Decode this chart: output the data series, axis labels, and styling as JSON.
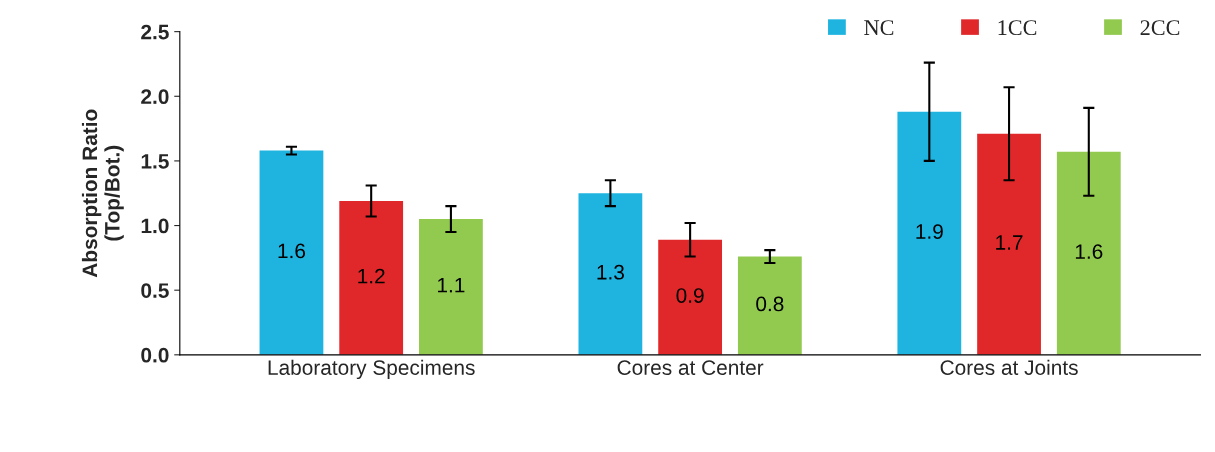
{
  "chart_data": {
    "type": "bar",
    "ylabel": "Absorption Ratio\n(Top/Bot.)",
    "categories": [
      "Laboratory Specimens",
      "Cores at Center",
      "Cores at Joints"
    ],
    "series": [
      {
        "name": "NC",
        "color": "#1fb4e0",
        "values": [
          1.58,
          1.25,
          1.88
        ],
        "errors": [
          0.03,
          0.1,
          0.38
        ],
        "value_labels": [
          "1.6",
          "1.3",
          "1.9"
        ]
      },
      {
        "name": "1CC",
        "color": "#e0282a",
        "values": [
          1.19,
          0.89,
          1.71
        ],
        "errors": [
          0.12,
          0.13,
          0.36
        ],
        "value_labels": [
          "1.2",
          "0.9",
          "1.7"
        ]
      },
      {
        "name": "2CC",
        "color": "#92c94f",
        "values": [
          1.05,
          0.76,
          1.57
        ],
        "errors": [
          0.1,
          0.05,
          0.34
        ],
        "value_labels": [
          "1.1",
          "0.8",
          "1.6"
        ]
      }
    ],
    "ylim": [
      0,
      2.5
    ],
    "yticks": [
      {
        "value": 0,
        "label": "0.0"
      },
      {
        "value": 0.5,
        "label": "0.5"
      },
      {
        "value": 1,
        "label": "1.0"
      },
      {
        "value": 1.5,
        "label": "1.5"
      },
      {
        "value": 2,
        "label": "2.0"
      },
      {
        "value": 2.5,
        "label": "2.5"
      }
    ],
    "legend": "top right",
    "grid": false
  }
}
